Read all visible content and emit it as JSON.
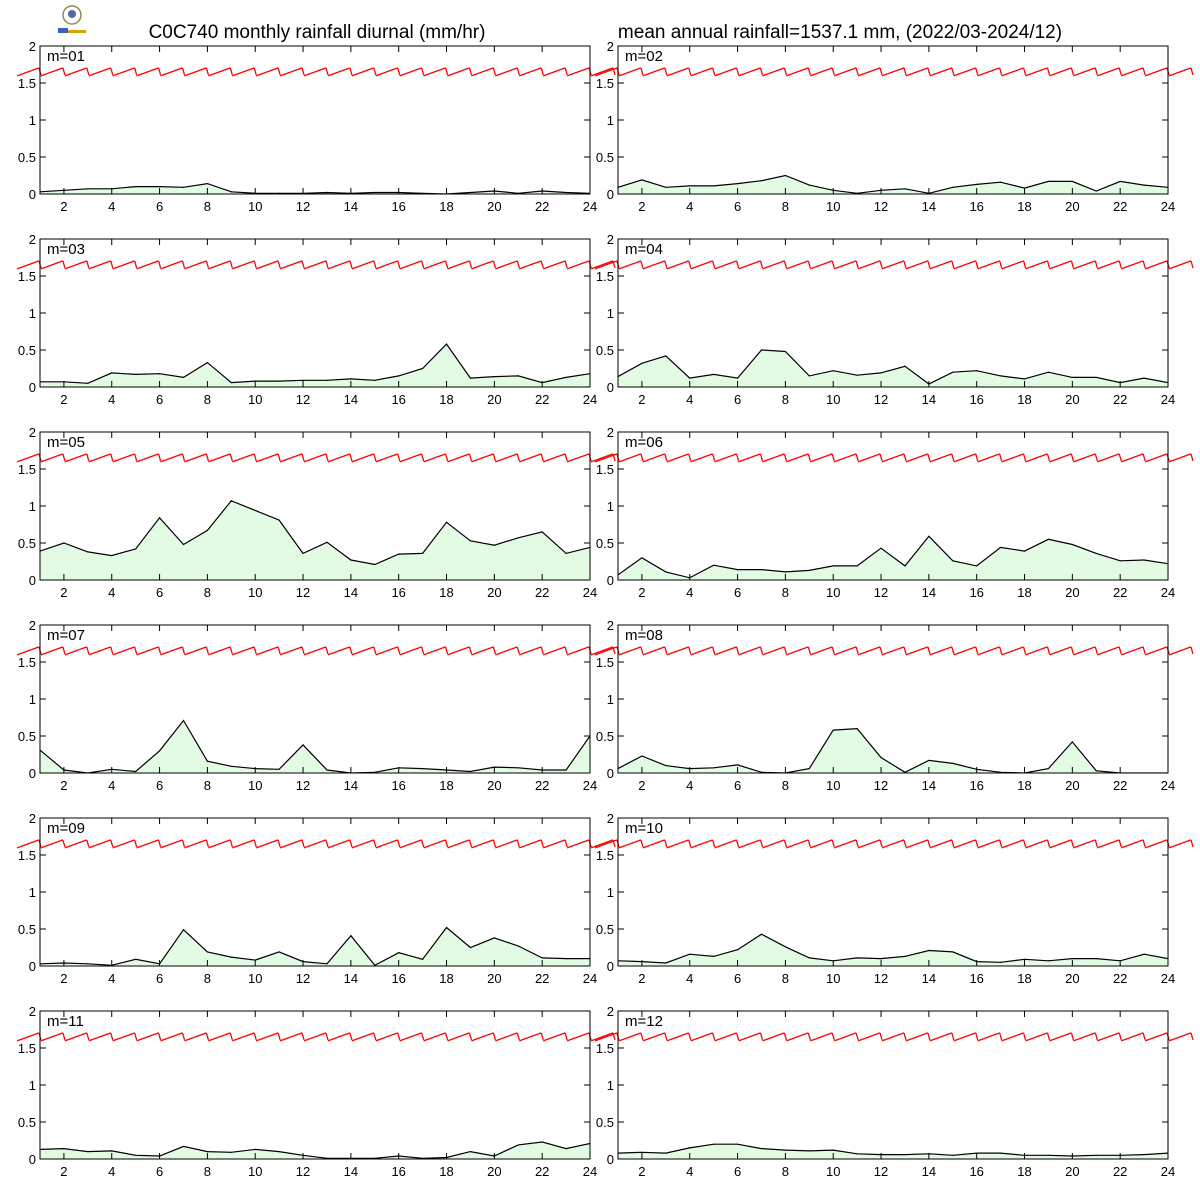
{
  "header": {
    "title_left": "C0C740 monthly rainfall diurnal (mm/hr)",
    "title_right": "mean annual rainfall=1537.1 mm, (2022/03-2024/12)",
    "logo_icon": "weather-bureau-logo-icon"
  },
  "colors": {
    "rain_line": "#000000",
    "rain_fill": "#e3fbe3",
    "wind_barb": "#ff0000",
    "axes": "#000000"
  },
  "chart_data": {
    "type": "area",
    "x_ticks": [
      "2",
      "4",
      "6",
      "8",
      "10",
      "12",
      "14",
      "16",
      "18",
      "20",
      "22",
      "24"
    ],
    "y_ticks": [
      "0",
      "0.5",
      "1",
      "1.5",
      "2"
    ],
    "xlim": [
      1,
      24
    ],
    "ylim": [
      0,
      2
    ],
    "grid": false,
    "x": [
      1,
      2,
      3,
      4,
      5,
      6,
      7,
      8,
      9,
      10,
      11,
      12,
      13,
      14,
      15,
      16,
      17,
      18,
      19,
      20,
      21,
      22,
      23,
      24
    ],
    "panels": [
      {
        "label": "m=01",
        "values": [
          0.03,
          0.05,
          0.07,
          0.07,
          0.1,
          0.1,
          0.09,
          0.14,
          0.03,
          0.01,
          0.01,
          0.01,
          0.02,
          0.01,
          0.02,
          0.02,
          0.01,
          0.0,
          0.02,
          0.04,
          0.01,
          0.04,
          0.02,
          0.01
        ]
      },
      {
        "label": "m=02",
        "values": [
          0.09,
          0.19,
          0.09,
          0.11,
          0.11,
          0.14,
          0.18,
          0.25,
          0.12,
          0.05,
          0.01,
          0.05,
          0.07,
          0.01,
          0.09,
          0.13,
          0.16,
          0.08,
          0.17,
          0.17,
          0.04,
          0.17,
          0.12,
          0.09
        ]
      },
      {
        "label": "m=03",
        "values": [
          0.07,
          0.07,
          0.05,
          0.19,
          0.17,
          0.18,
          0.13,
          0.33,
          0.06,
          0.08,
          0.08,
          0.09,
          0.09,
          0.11,
          0.09,
          0.15,
          0.25,
          0.58,
          0.12,
          0.14,
          0.15,
          0.06,
          0.13,
          0.18
        ]
      },
      {
        "label": "m=04",
        "values": [
          0.14,
          0.32,
          0.42,
          0.12,
          0.17,
          0.12,
          0.5,
          0.48,
          0.15,
          0.22,
          0.16,
          0.19,
          0.28,
          0.04,
          0.2,
          0.22,
          0.15,
          0.11,
          0.2,
          0.13,
          0.13,
          0.06,
          0.12,
          0.06
        ]
      },
      {
        "label": "m=05",
        "values": [
          0.39,
          0.5,
          0.38,
          0.33,
          0.42,
          0.84,
          0.48,
          0.67,
          1.07,
          0.94,
          0.81,
          0.36,
          0.51,
          0.27,
          0.21,
          0.35,
          0.36,
          0.78,
          0.53,
          0.47,
          0.57,
          0.65,
          0.36,
          0.44
        ]
      },
      {
        "label": "m=06",
        "values": [
          0.07,
          0.3,
          0.11,
          0.03,
          0.2,
          0.14,
          0.14,
          0.11,
          0.13,
          0.19,
          0.19,
          0.43,
          0.19,
          0.59,
          0.26,
          0.19,
          0.44,
          0.39,
          0.55,
          0.48,
          0.36,
          0.26,
          0.27,
          0.22
        ]
      },
      {
        "label": "m=07",
        "values": [
          0.31,
          0.04,
          0.0,
          0.05,
          0.02,
          0.3,
          0.71,
          0.16,
          0.09,
          0.06,
          0.05,
          0.38,
          0.04,
          0.0,
          0.01,
          0.07,
          0.06,
          0.04,
          0.02,
          0.08,
          0.07,
          0.04,
          0.04,
          0.5
        ]
      },
      {
        "label": "m=08",
        "values": [
          0.06,
          0.23,
          0.1,
          0.06,
          0.07,
          0.11,
          0.01,
          0.0,
          0.06,
          0.58,
          0.6,
          0.21,
          0.01,
          0.17,
          0.13,
          0.05,
          0.01,
          0.0,
          0.06,
          0.42,
          0.03,
          0.0,
          0.0,
          0.0
        ]
      },
      {
        "label": "m=09",
        "values": [
          0.03,
          0.04,
          0.03,
          0.01,
          0.09,
          0.03,
          0.49,
          0.19,
          0.12,
          0.08,
          0.19,
          0.06,
          0.03,
          0.41,
          0.01,
          0.18,
          0.09,
          0.52,
          0.25,
          0.38,
          0.27,
          0.11,
          0.1,
          0.1
        ]
      },
      {
        "label": "m=10",
        "values": [
          0.07,
          0.06,
          0.04,
          0.16,
          0.13,
          0.22,
          0.43,
          0.26,
          0.11,
          0.07,
          0.11,
          0.1,
          0.13,
          0.21,
          0.19,
          0.06,
          0.05,
          0.09,
          0.07,
          0.1,
          0.1,
          0.07,
          0.16,
          0.1
        ]
      },
      {
        "label": "m=11",
        "values": [
          0.13,
          0.14,
          0.1,
          0.11,
          0.05,
          0.04,
          0.17,
          0.1,
          0.09,
          0.13,
          0.1,
          0.05,
          0.01,
          0.01,
          0.01,
          0.04,
          0.01,
          0.02,
          0.1,
          0.04,
          0.19,
          0.23,
          0.14,
          0.21
        ]
      },
      {
        "label": "m=12",
        "values": [
          0.08,
          0.09,
          0.08,
          0.15,
          0.2,
          0.2,
          0.14,
          0.12,
          0.11,
          0.12,
          0.07,
          0.06,
          0.06,
          0.07,
          0.05,
          0.08,
          0.08,
          0.05,
          0.05,
          0.04,
          0.05,
          0.05,
          0.06,
          0.08
        ]
      }
    ]
  }
}
